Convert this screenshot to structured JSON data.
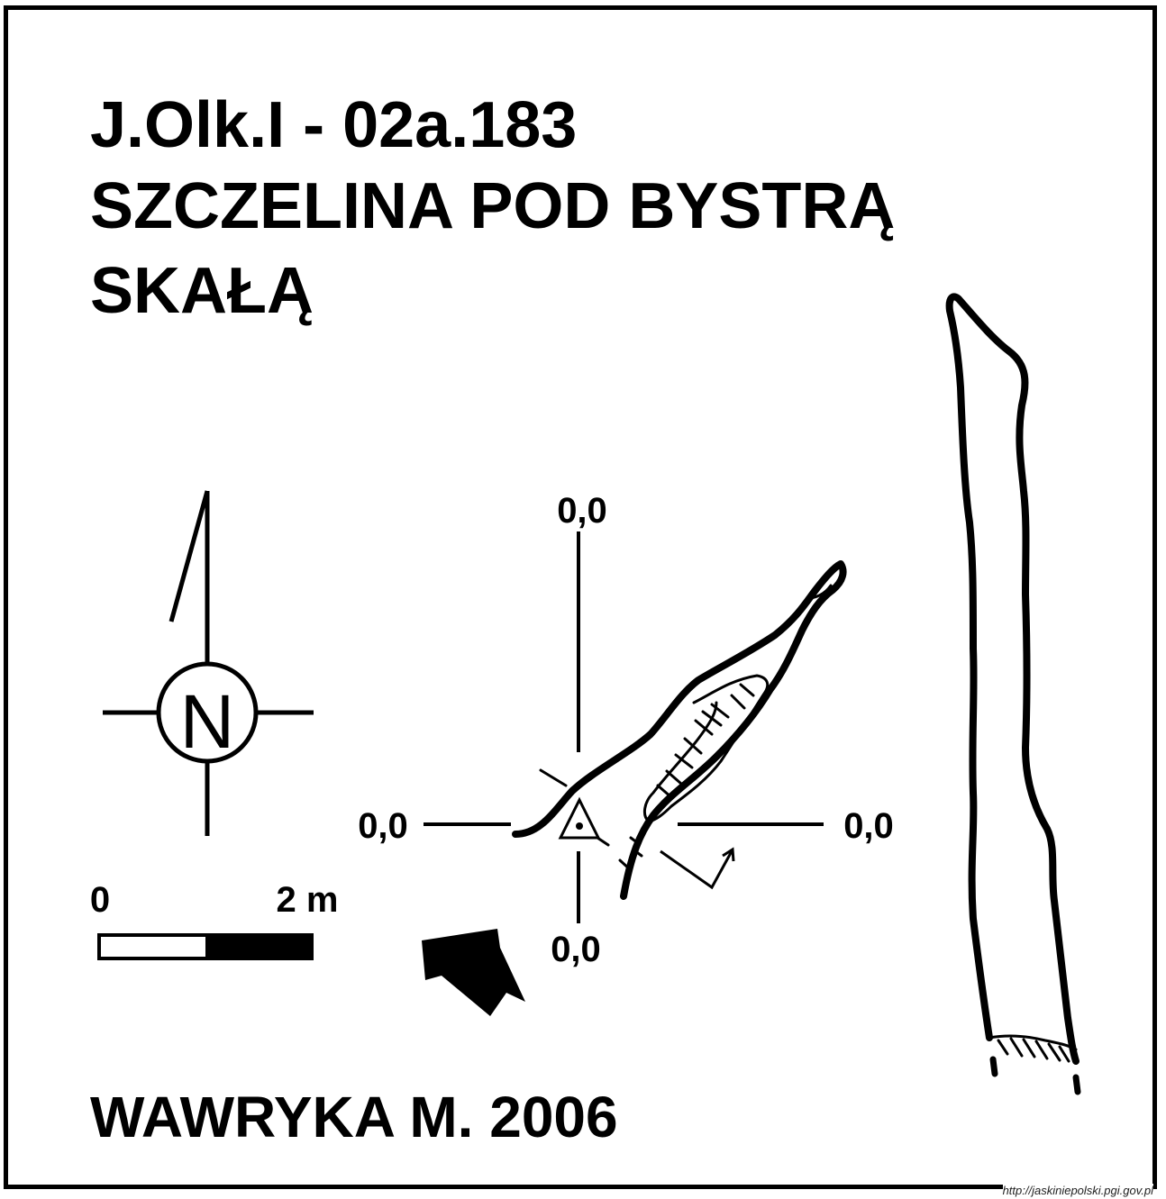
{
  "title": {
    "line1": "J.Olk.I - 02a.183",
    "line2": "SZCZELINA POD BYSTRĄ",
    "line3": "SKAŁĄ"
  },
  "compass": {
    "label": "N"
  },
  "scale_bar": {
    "start_label": "0",
    "end_label": "2 m"
  },
  "section_labels": {
    "top": "0,0",
    "left": "0,0",
    "right": "0,0",
    "bottom": "0,0"
  },
  "author": "WAWRYKA M. 2006",
  "source": "http://jaskiniepolski.pgi.gov.pl"
}
